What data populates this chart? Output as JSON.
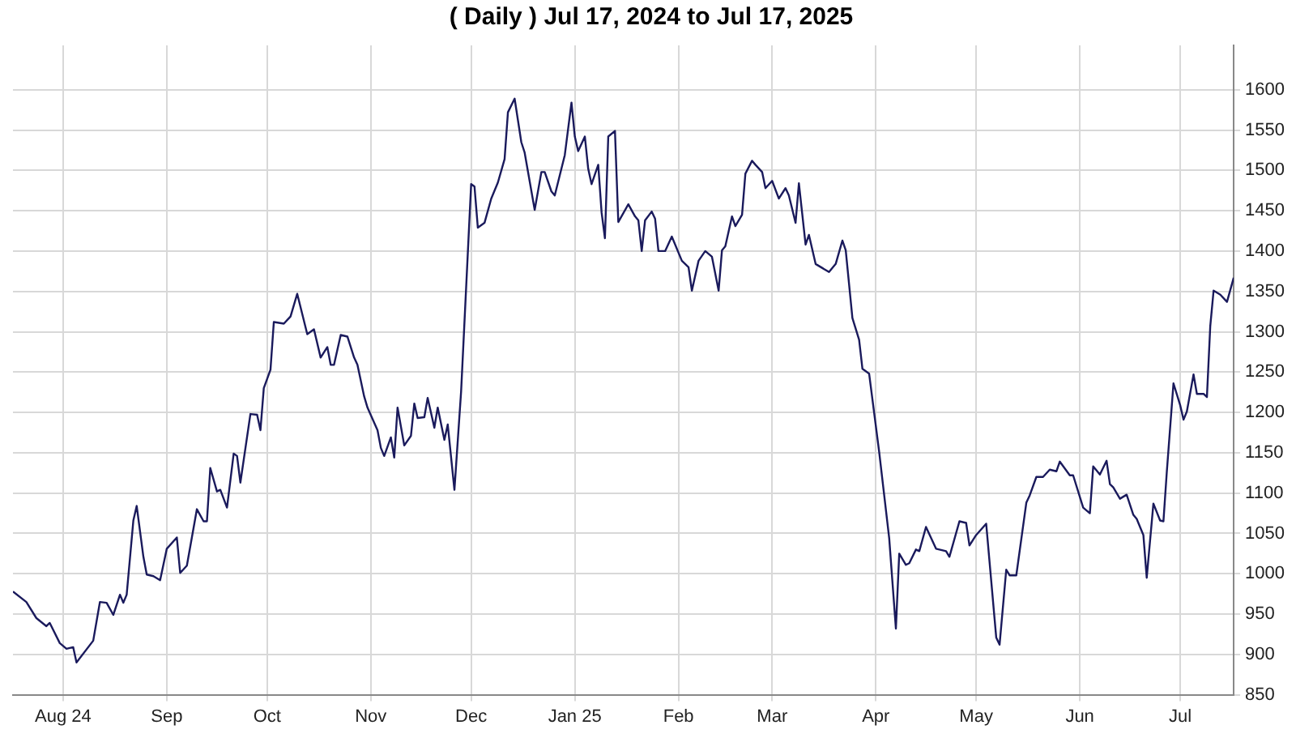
{
  "chart_data": {
    "type": "line",
    "title": "( Daily ) Jul 17, 2024 to Jul 17, 2025",
    "x": [
      "2024-07-17",
      "2024-07-21",
      "2024-07-24",
      "2024-07-27",
      "2024-07-28",
      "2024-07-31",
      "2024-08-02",
      "2024-08-04",
      "2024-08-05",
      "2024-08-10",
      "2024-08-12",
      "2024-08-14",
      "2024-08-16",
      "2024-08-18",
      "2024-08-19",
      "2024-08-20",
      "2024-08-22",
      "2024-08-23",
      "2024-08-25",
      "2024-08-26",
      "2024-08-28",
      "2024-08-30",
      "2024-09-01",
      "2024-09-04",
      "2024-09-05",
      "2024-09-07",
      "2024-09-10",
      "2024-09-12",
      "2024-09-13",
      "2024-09-14",
      "2024-09-16",
      "2024-09-17",
      "2024-09-19",
      "2024-09-21",
      "2024-09-22",
      "2024-09-23",
      "2024-09-26",
      "2024-09-28",
      "2024-09-29",
      "2024-09-30",
      "2024-10-02",
      "2024-10-03",
      "2024-10-06",
      "2024-10-08",
      "2024-10-10",
      "2024-10-13",
      "2024-10-15",
      "2024-10-17",
      "2024-10-19",
      "2024-10-20",
      "2024-10-21",
      "2024-10-23",
      "2024-10-25",
      "2024-10-27",
      "2024-10-28",
      "2024-10-30",
      "2024-10-31",
      "2024-11-03",
      "2024-11-04",
      "2024-11-05",
      "2024-11-07",
      "2024-11-08",
      "2024-11-09",
      "2024-11-11",
      "2024-11-13",
      "2024-11-14",
      "2024-11-15",
      "2024-11-17",
      "2024-11-18",
      "2024-11-20",
      "2024-11-21",
      "2024-11-23",
      "2024-11-24",
      "2024-11-26",
      "2024-11-28",
      "2024-12-01",
      "2024-12-02",
      "2024-12-03",
      "2024-12-05",
      "2024-12-07",
      "2024-12-09",
      "2024-12-11",
      "2024-12-12",
      "2024-12-14",
      "2024-12-16",
      "2024-12-17",
      "2024-12-20",
      "2024-12-22",
      "2024-12-23",
      "2024-12-25",
      "2024-12-26",
      "2024-12-29",
      "2024-12-31",
      "2025-01-01",
      "2025-01-02",
      "2025-01-04",
      "2025-01-05",
      "2025-01-06",
      "2025-01-08",
      "2025-01-09",
      "2025-01-10",
      "2025-01-11",
      "2025-01-13",
      "2025-01-14",
      "2025-01-17",
      "2025-01-19",
      "2025-01-20",
      "2025-01-21",
      "2025-01-22",
      "2025-01-24",
      "2025-01-25",
      "2025-01-26",
      "2025-01-28",
      "2025-01-30",
      "2025-02-02",
      "2025-02-04",
      "2025-02-05",
      "2025-02-07",
      "2025-02-09",
      "2025-02-11",
      "2025-02-13",
      "2025-02-14",
      "2025-02-15",
      "2025-02-17",
      "2025-02-18",
      "2025-02-20",
      "2025-02-21",
      "2025-02-23",
      "2025-02-24",
      "2025-02-26",
      "2025-02-27",
      "2025-03-01",
      "2025-03-03",
      "2025-03-05",
      "2025-03-06",
      "2025-03-08",
      "2025-03-09",
      "2025-03-11",
      "2025-03-12",
      "2025-03-14",
      "2025-03-18",
      "2025-03-20",
      "2025-03-22",
      "2025-03-23",
      "2025-03-25",
      "2025-03-27",
      "2025-03-28",
      "2025-03-30",
      "2025-04-02",
      "2025-04-05",
      "2025-04-07",
      "2025-04-08",
      "2025-04-10",
      "2025-04-11",
      "2025-04-13",
      "2025-04-14",
      "2025-04-16",
      "2025-04-19",
      "2025-04-22",
      "2025-04-23",
      "2025-04-26",
      "2025-04-28",
      "2025-04-29",
      "2025-05-01",
      "2025-05-04",
      "2025-05-05",
      "2025-05-07",
      "2025-05-08",
      "2025-05-10",
      "2025-05-11",
      "2025-05-13",
      "2025-05-16",
      "2025-05-17",
      "2025-05-19",
      "2025-05-21",
      "2025-05-23",
      "2025-05-25",
      "2025-05-26",
      "2025-05-29",
      "2025-05-30",
      "2025-06-02",
      "2025-06-04",
      "2025-06-05",
      "2025-06-07",
      "2025-06-09",
      "2025-06-10",
      "2025-06-11",
      "2025-06-13",
      "2025-06-15",
      "2025-06-17",
      "2025-06-18",
      "2025-06-20",
      "2025-06-21",
      "2025-06-23",
      "2025-06-25",
      "2025-06-26",
      "2025-06-27",
      "2025-06-29",
      "2025-07-01",
      "2025-07-02",
      "2025-07-03",
      "2025-07-05",
      "2025-07-06",
      "2025-07-08",
      "2025-07-09",
      "2025-07-10",
      "2025-07-11",
      "2025-07-13",
      "2025-07-15",
      "2025-07-17"
    ],
    "series": [
      {
        "color": "#1a1a5c",
        "values": [
          978,
          965,
          945,
          935,
          939,
          914,
          907,
          909,
          890,
          917,
          965,
          964,
          949,
          974,
          964,
          974,
          1066,
          1084,
          1021,
          999,
          997,
          992,
          1031,
          1045,
          1001,
          1010,
          1080,
          1065,
          1065,
          1131,
          1102,
          1104,
          1082,
          1149,
          1146,
          1113,
          1198,
          1197,
          1178,
          1230,
          1253,
          1312,
          1310,
          1319,
          1347,
          1297,
          1303,
          1268,
          1281,
          1259,
          1259,
          1296,
          1294,
          1268,
          1259,
          1220,
          1206,
          1178,
          1156,
          1146,
          1169,
          1144,
          1206,
          1159,
          1171,
          1211,
          1193,
          1194,
          1218,
          1181,
          1206,
          1166,
          1185,
          1104,
          1226,
          1483,
          1480,
          1429,
          1435,
          1465,
          1485,
          1514,
          1572,
          1589,
          1535,
          1522,
          1451,
          1498,
          1498,
          1474,
          1469,
          1519,
          1584,
          1542,
          1524,
          1542,
          1502,
          1483,
          1507,
          1448,
          1416,
          1542,
          1549,
          1436,
          1458,
          1443,
          1438,
          1400,
          1438,
          1449,
          1440,
          1400,
          1400,
          1418,
          1388,
          1380,
          1351,
          1388,
          1400,
          1393,
          1351,
          1401,
          1406,
          1443,
          1431,
          1445,
          1496,
          1512,
          1507,
          1498,
          1478,
          1487,
          1465,
          1478,
          1469,
          1435,
          1484,
          1408,
          1420,
          1384,
          1374,
          1384,
          1413,
          1401,
          1317,
          1290,
          1254,
          1248,
          1151,
          1044,
          932,
          1025,
          1011,
          1013,
          1030,
          1028,
          1058,
          1031,
          1028,
          1021,
          1065,
          1063,
          1035,
          1048,
          1062,
          1015,
          921,
          912,
          1005,
          998,
          998,
          1088,
          1097,
          1120,
          1120,
          1129,
          1127,
          1139,
          1122,
          1122,
          1082,
          1075,
          1133,
          1123,
          1140,
          1111,
          1107,
          1093,
          1098,
          1073,
          1068,
          1048,
          995,
          1087,
          1066,
          1065,
          1126,
          1236,
          1209,
          1191,
          1201,
          1247,
          1223,
          1223,
          1219,
          1307,
          1351,
          1346,
          1337,
          1367
        ]
      }
    ],
    "xlim": [
      "2024-07-17",
      "2025-07-17"
    ],
    "xticks": [
      {
        "value": "2024-08-01",
        "label": "Aug 24"
      },
      {
        "value": "2024-09-01",
        "label": "Sep"
      },
      {
        "value": "2024-10-01",
        "label": "Oct"
      },
      {
        "value": "2024-11-01",
        "label": "Nov"
      },
      {
        "value": "2024-12-01",
        "label": "Dec"
      },
      {
        "value": "2025-01-01",
        "label": "Jan 25"
      },
      {
        "value": "2025-02-01",
        "label": "Feb"
      },
      {
        "value": "2025-03-01",
        "label": "Mar"
      },
      {
        "value": "2025-04-01",
        "label": "Apr"
      },
      {
        "value": "2025-05-01",
        "label": "May"
      },
      {
        "value": "2025-06-01",
        "label": "Jun"
      },
      {
        "value": "2025-07-01",
        "label": "Jul"
      }
    ],
    "ylim": [
      850,
      1655
    ],
    "yticks": [
      850,
      900,
      950,
      1000,
      1050,
      1100,
      1150,
      1200,
      1250,
      1300,
      1350,
      1400,
      1450,
      1500,
      1550,
      1600
    ],
    "grid": true,
    "marker": "none",
    "line_style": "solid"
  }
}
